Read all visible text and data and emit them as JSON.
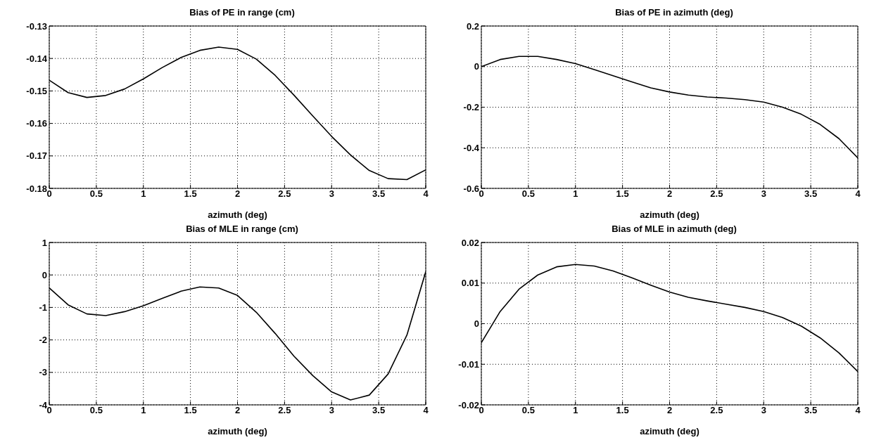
{
  "chart_data": [
    {
      "type": "line",
      "title": "Bias of PE in range (cm)",
      "xlabel": "azimuth (deg)",
      "color": "#000000",
      "grid": true,
      "xlim": [
        0,
        4
      ],
      "xticks": [
        0,
        0.5,
        1,
        1.5,
        2,
        2.5,
        3,
        3.5,
        4
      ],
      "ylim": [
        -0.18,
        -0.13
      ],
      "yticks": [
        -0.18,
        -0.17,
        -0.16,
        -0.15,
        -0.14,
        -0.13
      ],
      "x": [
        0,
        0.2,
        0.4,
        0.6,
        0.8,
        1,
        1.2,
        1.4,
        1.6,
        1.8,
        2,
        2.2,
        2.4,
        2.6,
        2.8,
        3,
        3.2,
        3.4,
        3.6,
        3.8,
        4
      ],
      "values": [
        -0.1467,
        -0.1505,
        -0.152,
        -0.1514,
        -0.1494,
        -0.1463,
        -0.1428,
        -0.1397,
        -0.1375,
        -0.1365,
        -0.1372,
        -0.1402,
        -0.1452,
        -0.1513,
        -0.1577,
        -0.164,
        -0.1697,
        -0.1745,
        -0.177,
        -0.1773,
        -0.1743
      ]
    },
    {
      "type": "line",
      "title": "Bias of PE in azimuth (deg)",
      "xlabel": "azimuth (deg)",
      "color": "#000000",
      "grid": true,
      "xlim": [
        0,
        4
      ],
      "xticks": [
        0,
        0.5,
        1,
        1.5,
        2,
        2.5,
        3,
        3.5,
        4
      ],
      "ylim": [
        -0.6,
        0.2
      ],
      "yticks": [
        -0.6,
        -0.4,
        -0.2,
        0,
        0.2
      ],
      "x": [
        0,
        0.2,
        0.4,
        0.6,
        0.8,
        1,
        1.2,
        1.4,
        1.6,
        1.8,
        2,
        2.2,
        2.4,
        2.6,
        2.8,
        3,
        3.2,
        3.4,
        3.6,
        3.8,
        4
      ],
      "values": [
        0.0,
        0.035,
        0.05,
        0.05,
        0.035,
        0.015,
        -0.015,
        -0.045,
        -0.075,
        -0.105,
        -0.125,
        -0.14,
        -0.15,
        -0.155,
        -0.163,
        -0.175,
        -0.2,
        -0.235,
        -0.285,
        -0.355,
        -0.45
      ]
    },
    {
      "type": "line",
      "title": "Bias of MLE in range (cm)",
      "xlabel": "azimuth (deg)",
      "color": "#000000",
      "grid": true,
      "xlim": [
        0,
        4
      ],
      "xticks": [
        0,
        0.5,
        1,
        1.5,
        2,
        2.5,
        3,
        3.5,
        4
      ],
      "ylim": [
        -4,
        1
      ],
      "yticks": [
        -4,
        -3,
        -2,
        -1,
        0,
        1
      ],
      "x": [
        0,
        0.2,
        0.4,
        0.6,
        0.8,
        1,
        1.2,
        1.4,
        1.6,
        1.8,
        2,
        2.2,
        2.4,
        2.6,
        2.8,
        3,
        3.2,
        3.4,
        3.6,
        3.8,
        4
      ],
      "values": [
        -0.4,
        -0.92,
        -1.2,
        -1.25,
        -1.13,
        -0.95,
        -0.72,
        -0.5,
        -0.37,
        -0.4,
        -0.63,
        -1.15,
        -1.8,
        -2.5,
        -3.1,
        -3.6,
        -3.85,
        -3.7,
        -3.05,
        -1.85,
        0.1
      ]
    },
    {
      "type": "line",
      "title": "Bias of MLE in azimuth (deg)",
      "xlabel": "azimuth (deg)",
      "color": "#000000",
      "grid": true,
      "xlim": [
        0,
        4
      ],
      "xticks": [
        0,
        0.5,
        1,
        1.5,
        2,
        2.5,
        3,
        3.5,
        4
      ],
      "ylim": [
        -0.02,
        0.02
      ],
      "yticks": [
        -0.02,
        -0.01,
        0,
        0.01,
        0.02
      ],
      "x": [
        0,
        0.2,
        0.4,
        0.6,
        0.8,
        1,
        1.2,
        1.4,
        1.6,
        1.8,
        2,
        2.2,
        2.4,
        2.6,
        2.8,
        3,
        3.2,
        3.4,
        3.6,
        3.8,
        4
      ],
      "values": [
        -0.0047,
        0.003,
        0.0085,
        0.012,
        0.014,
        0.0146,
        0.0142,
        0.013,
        0.0113,
        0.0095,
        0.0078,
        0.0065,
        0.0056,
        0.0048,
        0.004,
        0.003,
        0.0015,
        -0.0006,
        -0.0035,
        -0.0072,
        -0.0118
      ]
    }
  ]
}
